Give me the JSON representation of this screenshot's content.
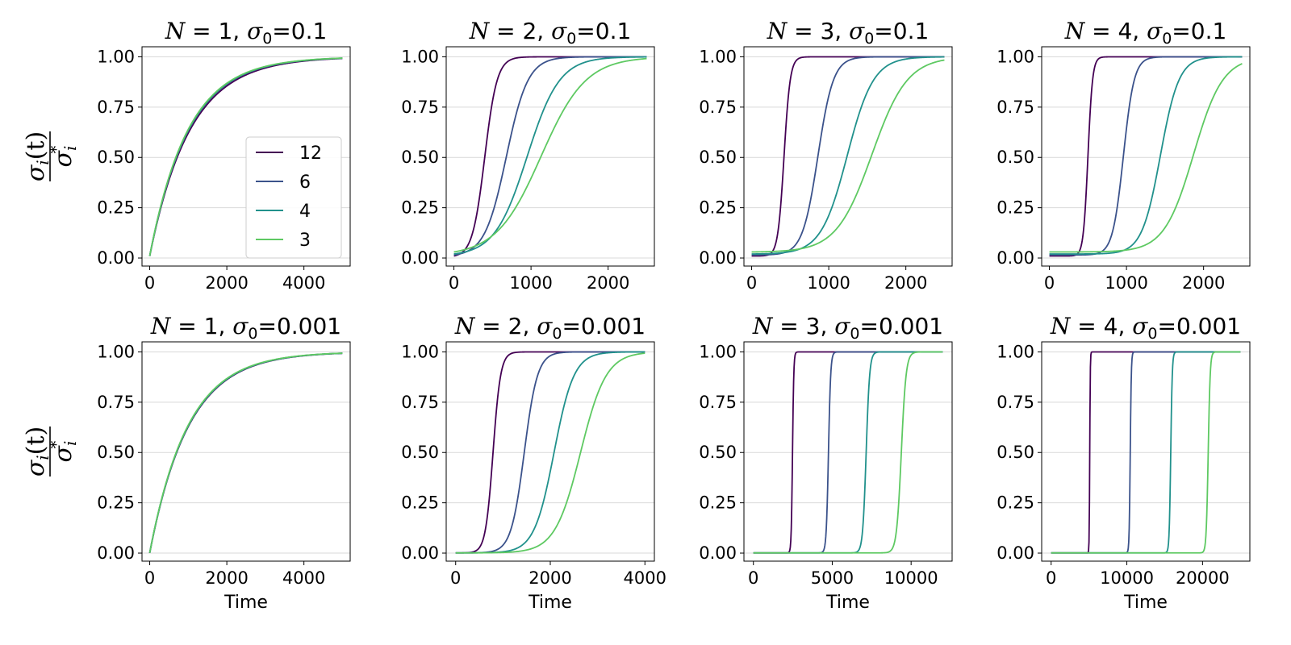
{
  "figure": {
    "ylabel": {
      "numerator": "σ i (t)",
      "denominator": "σ i *"
    },
    "xlabel": "Time"
  },
  "legend": {
    "entries": [
      {
        "label": "12",
        "color": "#440154"
      },
      {
        "label": "6",
        "color": "#3b528b"
      },
      {
        "label": "4",
        "color": "#21918c"
      },
      {
        "label": "3",
        "color": "#5ec962"
      }
    ]
  },
  "chart_data": [
    {
      "type": "line",
      "title": "N = 1, σ0=0.1",
      "title_parts": {
        "n": "N = 1",
        "sigma": "σ",
        "sub": "0",
        "value": "=0.1"
      },
      "xlim": [
        -200,
        5200
      ],
      "ylim": [
        -0.04,
        1.05
      ],
      "xticks": [
        0,
        2000,
        4000
      ],
      "xtick_labels": [
        "0",
        "2000",
        "4000"
      ],
      "yticks": [
        0,
        0.25,
        0.5,
        0.75,
        1.0
      ],
      "ytick_labels": [
        "0.00",
        "0.25",
        "0.50",
        "0.75",
        "1.00"
      ],
      "xlabel": "",
      "model": "exp",
      "xmax": 5000,
      "y0": 0.01,
      "series": [
        {
          "name": "12",
          "rate": 0.00096
        },
        {
          "name": "6",
          "rate": 0.00099
        },
        {
          "name": "4",
          "rate": 0.001
        },
        {
          "name": "3",
          "rate": 0.00101
        }
      ]
    },
    {
      "type": "line",
      "title": "N = 2, σ0=0.1",
      "title_parts": {
        "n": "N = 2",
        "sigma": "σ",
        "sub": "0",
        "value": "=0.1"
      },
      "xlim": [
        -100,
        2600
      ],
      "ylim": [
        -0.04,
        1.05
      ],
      "xticks": [
        0,
        1000,
        2000
      ],
      "xtick_labels": [
        "0",
        "1000",
        "2000"
      ],
      "yticks": [
        0,
        0.25,
        0.5,
        0.75,
        1.0
      ],
      "ytick_labels": [
        "0.00",
        "0.25",
        "0.50",
        "0.75",
        "1.00"
      ],
      "xlabel": "",
      "model": "logistic",
      "xmax": 2500,
      "series": [
        {
          "name": "12",
          "mid": 400,
          "scale": 80,
          "y0": 0.01
        },
        {
          "name": "6",
          "mid": 680,
          "scale": 140,
          "y0": 0.015
        },
        {
          "name": "4",
          "mid": 950,
          "scale": 210,
          "y0": 0.02
        },
        {
          "name": "3",
          "mid": 1130,
          "scale": 290,
          "y0": 0.03
        }
      ]
    },
    {
      "type": "line",
      "title": "N = 3, σ0=0.1",
      "title_parts": {
        "n": "N = 3",
        "sigma": "σ",
        "sub": "0",
        "value": "=0.1"
      },
      "xlim": [
        -100,
        2600
      ],
      "ylim": [
        -0.04,
        1.05
      ],
      "xticks": [
        0,
        1000,
        2000
      ],
      "xtick_labels": [
        "0",
        "1000",
        "2000"
      ],
      "yticks": [
        0,
        0.25,
        0.5,
        0.75,
        1.0
      ],
      "ytick_labels": [
        "0.00",
        "0.25",
        "0.50",
        "0.75",
        "1.00"
      ],
      "xlabel": "",
      "model": "logistic",
      "xmax": 2500,
      "series": [
        {
          "name": "12",
          "mid": 420,
          "scale": 40,
          "y0": 0.01
        },
        {
          "name": "6",
          "mid": 860,
          "scale": 100,
          "y0": 0.015
        },
        {
          "name": "4",
          "mid": 1240,
          "scale": 170,
          "y0": 0.02
        },
        {
          "name": "3",
          "mid": 1560,
          "scale": 230,
          "y0": 0.03
        }
      ]
    },
    {
      "type": "line",
      "title": "N = 4, σ0=0.1",
      "title_parts": {
        "n": "N = 4",
        "sigma": "σ",
        "sub": "0",
        "value": "=0.1"
      },
      "xlim": [
        -100,
        2600
      ],
      "ylim": [
        -0.04,
        1.05
      ],
      "xticks": [
        0,
        1000,
        2000
      ],
      "xtick_labels": [
        "0",
        "1000",
        "2000"
      ],
      "yticks": [
        0,
        0.25,
        0.5,
        0.75,
        1.0
      ],
      "ytick_labels": [
        "0.00",
        "0.25",
        "0.50",
        "0.75",
        "1.00"
      ],
      "xlabel": "",
      "model": "logistic",
      "xmax": 2500,
      "series": [
        {
          "name": "12",
          "mid": 500,
          "scale": 30,
          "y0": 0.01
        },
        {
          "name": "6",
          "mid": 960,
          "scale": 70,
          "y0": 0.015
        },
        {
          "name": "4",
          "mid": 1440,
          "scale": 120,
          "y0": 0.02
        },
        {
          "name": "3",
          "mid": 1870,
          "scale": 190,
          "y0": 0.03
        }
      ]
    },
    {
      "type": "line",
      "title": "N = 1, σ0=0.001",
      "title_parts": {
        "n": "N = 1",
        "sigma": "σ",
        "sub": "0",
        "value": "=0.001"
      },
      "xlim": [
        -200,
        5200
      ],
      "ylim": [
        -0.04,
        1.05
      ],
      "xticks": [
        0,
        2000,
        4000
      ],
      "xtick_labels": [
        "0",
        "2000",
        "4000"
      ],
      "yticks": [
        0,
        0.25,
        0.5,
        0.75,
        1.0
      ],
      "ytick_labels": [
        "0.00",
        "0.25",
        "0.50",
        "0.75",
        "1.00"
      ],
      "xlabel": "Time",
      "model": "exp",
      "xmax": 5000,
      "y0": 0.001,
      "series": [
        {
          "name": "12",
          "rate": 0.00099
        },
        {
          "name": "6",
          "rate": 0.001
        },
        {
          "name": "4",
          "rate": 0.001
        },
        {
          "name": "3",
          "rate": 0.00101
        }
      ]
    },
    {
      "type": "line",
      "title": "N = 2, σ0=0.001",
      "title_parts": {
        "n": "N = 2",
        "sigma": "σ",
        "sub": "0",
        "value": "=0.001"
      },
      "xlim": [
        -200,
        4200
      ],
      "ylim": [
        -0.04,
        1.05
      ],
      "xticks": [
        0,
        2000,
        4000
      ],
      "xtick_labels": [
        "0",
        "2000",
        "4000"
      ],
      "yticks": [
        0,
        0.25,
        0.5,
        0.75,
        1.0
      ],
      "ytick_labels": [
        "0.00",
        "0.25",
        "0.50",
        "0.75",
        "1.00"
      ],
      "xlabel": "Time",
      "model": "logistic",
      "xmax": 4000,
      "series": [
        {
          "name": "12",
          "mid": 790,
          "scale": 80,
          "y0": 0.001
        },
        {
          "name": "6",
          "mid": 1450,
          "scale": 140,
          "y0": 0.001
        },
        {
          "name": "4",
          "mid": 2080,
          "scale": 210,
          "y0": 0.001
        },
        {
          "name": "3",
          "mid": 2640,
          "scale": 270,
          "y0": 0.001
        }
      ]
    },
    {
      "type": "line",
      "title": "N = 3, σ0=0.001",
      "title_parts": {
        "n": "N = 3",
        "sigma": "σ",
        "sub": "0",
        "value": "=0.001"
      },
      "xlim": [
        -600,
        12600
      ],
      "ylim": [
        -0.04,
        1.05
      ],
      "xticks": [
        0,
        5000,
        10000
      ],
      "xtick_labels": [
        "0",
        "5000",
        "10000"
      ],
      "yticks": [
        0,
        0.25,
        0.5,
        0.75,
        1.0
      ],
      "ytick_labels": [
        "0.00",
        "0.25",
        "0.50",
        "0.75",
        "1.00"
      ],
      "xlabel": "Time",
      "model": "logistic",
      "xmax": 12000,
      "series": [
        {
          "name": "12",
          "mid": 2480,
          "scale": 40,
          "y0": 0.001
        },
        {
          "name": "6",
          "mid": 4760,
          "scale": 70,
          "y0": 0.001
        },
        {
          "name": "4",
          "mid": 7150,
          "scale": 110,
          "y0": 0.001
        },
        {
          "name": "3",
          "mid": 9380,
          "scale": 150,
          "y0": 0.001
        }
      ]
    },
    {
      "type": "line",
      "title": "N = 4, σ0=0.001",
      "title_parts": {
        "n": "N = 4",
        "sigma": "σ",
        "sub": "0",
        "value": "=0.001"
      },
      "xlim": [
        -1250,
        26250
      ],
      "ylim": [
        -0.04,
        1.05
      ],
      "xticks": [
        0,
        10000,
        20000
      ],
      "xtick_labels": [
        "0",
        "10000",
        "20000"
      ],
      "yticks": [
        0,
        0.25,
        0.5,
        0.75,
        1.0
      ],
      "ytick_labels": [
        "0.00",
        "0.25",
        "0.50",
        "0.75",
        "1.00"
      ],
      "xlabel": "Time",
      "model": "logistic",
      "xmax": 25000,
      "series": [
        {
          "name": "12",
          "mid": 5100,
          "scale": 35,
          "y0": 0.001
        },
        {
          "name": "6",
          "mid": 10450,
          "scale": 70,
          "y0": 0.001
        },
        {
          "name": "4",
          "mid": 15800,
          "scale": 100,
          "y0": 0.001
        },
        {
          "name": "3",
          "mid": 20750,
          "scale": 130,
          "y0": 0.001
        }
      ]
    }
  ]
}
